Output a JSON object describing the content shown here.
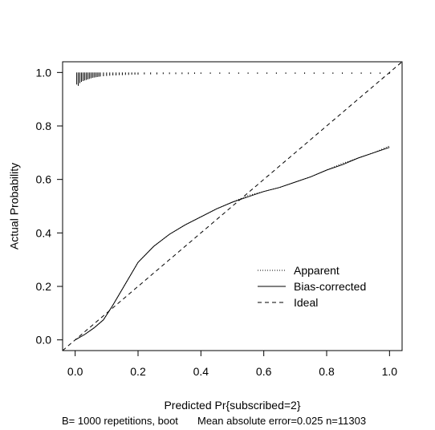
{
  "chart_data": {
    "type": "line",
    "xlabel": "Predicted Pr{subscribed=2}",
    "ylabel": "Actual Probability",
    "xlim": [
      -0.04,
      1.04
    ],
    "ylim": [
      -0.04,
      1.04
    ],
    "x_ticks": [
      "0.0",
      "0.2",
      "0.4",
      "0.6",
      "0.8",
      "1.0"
    ],
    "y_ticks": [
      "0.0",
      "0.2",
      "0.4",
      "0.6",
      "0.8",
      "1.0"
    ],
    "grid": false,
    "legend_position": "bottom-right",
    "series": [
      {
        "name": "Apparent",
        "style": "dotted",
        "x": [
          0.0,
          0.03,
          0.06,
          0.09,
          0.12,
          0.16,
          0.2,
          0.25,
          0.3,
          0.35,
          0.4,
          0.45,
          0.5,
          0.55,
          0.6,
          0.65,
          0.7,
          0.75,
          0.8,
          0.85,
          0.9,
          0.95,
          1.0
        ],
        "y": [
          0.0,
          0.02,
          0.045,
          0.075,
          0.13,
          0.21,
          0.29,
          0.35,
          0.395,
          0.43,
          0.46,
          0.49,
          0.515,
          0.54,
          0.555,
          0.57,
          0.59,
          0.61,
          0.635,
          0.66,
          0.68,
          0.7,
          0.725
        ]
      },
      {
        "name": "Bias-corrected",
        "style": "solid",
        "x": [
          0.0,
          0.03,
          0.06,
          0.09,
          0.12,
          0.16,
          0.2,
          0.25,
          0.3,
          0.35,
          0.4,
          0.45,
          0.5,
          0.55,
          0.6,
          0.65,
          0.7,
          0.75,
          0.8,
          0.85,
          0.9,
          0.95,
          1.0
        ],
        "y": [
          0.0,
          0.02,
          0.045,
          0.075,
          0.13,
          0.21,
          0.29,
          0.35,
          0.395,
          0.43,
          0.46,
          0.49,
          0.515,
          0.535,
          0.555,
          0.57,
          0.59,
          0.61,
          0.635,
          0.655,
          0.68,
          0.7,
          0.72
        ]
      },
      {
        "name": "Ideal",
        "style": "dashed",
        "x": [
          -0.04,
          1.04
        ],
        "y": [
          -0.04,
          1.04
        ]
      }
    ],
    "rug": {
      "y": 1.0,
      "x": [
        0.005,
        0.01,
        0.015,
        0.02,
        0.025,
        0.03,
        0.035,
        0.04,
        0.045,
        0.05,
        0.055,
        0.06,
        0.065,
        0.07,
        0.075,
        0.08,
        0.09,
        0.1,
        0.11,
        0.12,
        0.13,
        0.14,
        0.15,
        0.16,
        0.17,
        0.18,
        0.19,
        0.2,
        0.22,
        0.24,
        0.26,
        0.28,
        0.3,
        0.32,
        0.34,
        0.36,
        0.38,
        0.4,
        0.43,
        0.46,
        0.49,
        0.52,
        0.55,
        0.58,
        0.61,
        0.64,
        0.67,
        0.7,
        0.73,
        0.76,
        0.79,
        0.82,
        0.85,
        0.88,
        0.91,
        0.94,
        0.97,
        1.0
      ],
      "heights": [
        0.045,
        0.05,
        0.04,
        0.035,
        0.032,
        0.03,
        0.028,
        0.026,
        0.024,
        0.022,
        0.02,
        0.019,
        0.018,
        0.017,
        0.016,
        0.015,
        0.014,
        0.013,
        0.012,
        0.011,
        0.011,
        0.01,
        0.01,
        0.009,
        0.009,
        0.008,
        0.008,
        0.008,
        0.007,
        0.007,
        0.007,
        0.006,
        0.006,
        0.006,
        0.006,
        0.006,
        0.005,
        0.005,
        0.005,
        0.005,
        0.005,
        0.005,
        0.005,
        0.005,
        0.005,
        0.005,
        0.005,
        0.005,
        0.005,
        0.005,
        0.005,
        0.005,
        0.005,
        0.005,
        0.005,
        0.005,
        0.005,
        0.005
      ]
    },
    "caption_left": "B= 1000 repetitions, boot",
    "caption_right": "Mean absolute error=0.025 n=11303"
  }
}
